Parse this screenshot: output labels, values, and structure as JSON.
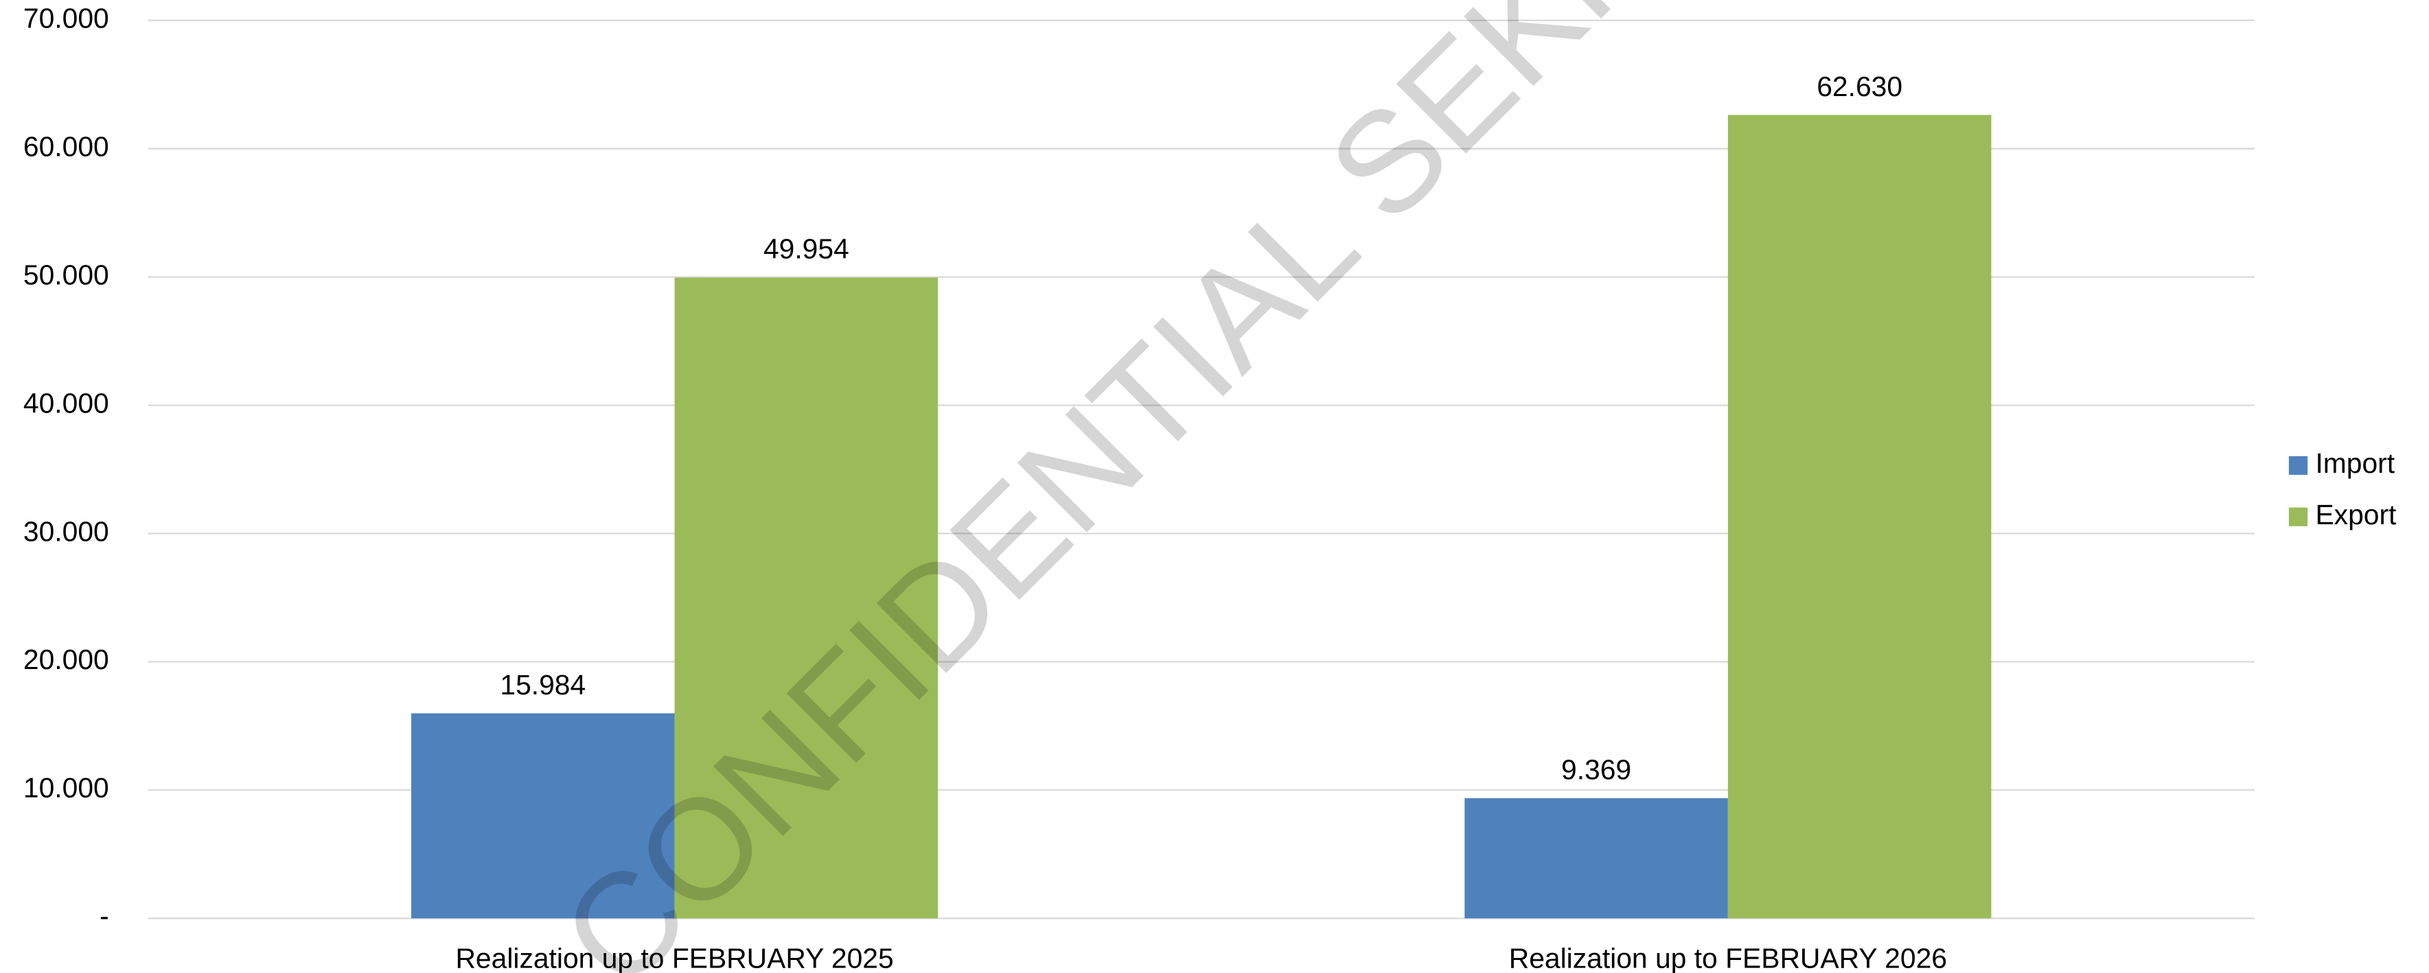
{
  "chart_data": {
    "type": "bar",
    "watermark": "CONFIDENTIAL SEKR",
    "categories": [
      "Realization up to FEBRUARY 2025",
      "Realization up to FEBRUARY 2026"
    ],
    "series": [
      {
        "name": "Import",
        "color": "#4f81bd",
        "values": [
          15984,
          9369
        ],
        "value_labels": [
          "15.984",
          "9.369"
        ]
      },
      {
        "name": "Export",
        "color": "#9bbb59",
        "values": [
          49954,
          62630
        ],
        "value_labels": [
          "49.954",
          "62.630"
        ]
      }
    ],
    "ylim": [
      0,
      70000
    ],
    "yticks": [
      {
        "value": 0,
        "label": "-"
      },
      {
        "value": 10000,
        "label": "10.000"
      },
      {
        "value": 20000,
        "label": "20.000"
      },
      {
        "value": 30000,
        "label": "30.000"
      },
      {
        "value": 40000,
        "label": "40.000"
      },
      {
        "value": 50000,
        "label": "50.000"
      },
      {
        "value": 60000,
        "label": "60.000"
      },
      {
        "value": 70000,
        "label": "70.000"
      }
    ],
    "grid": true,
    "legend": "right"
  }
}
